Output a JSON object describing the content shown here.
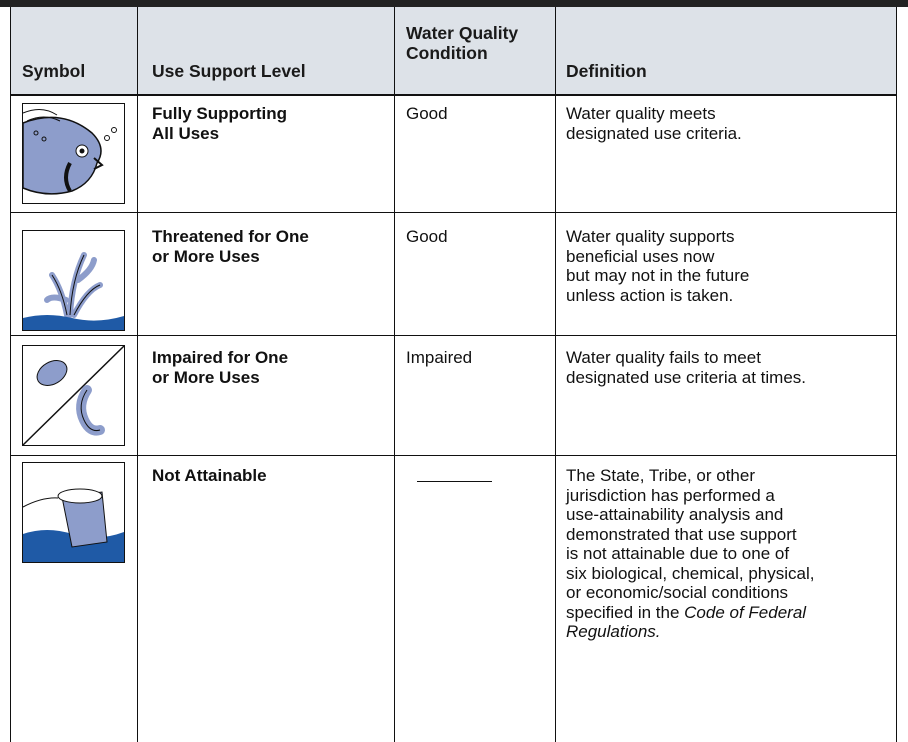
{
  "header": {
    "symbol": "Symbol",
    "level": "Use Support Level",
    "condition": [
      "Water Quality",
      "Condition"
    ],
    "definition": "Definition"
  },
  "table": {
    "rows": [
      {
        "level": [
          "Fully Supporting",
          "All Uses"
        ],
        "condition": "Good",
        "definition": [
          "Water quality meets",
          "designated use criteria."
        ]
      },
      {
        "level": [
          "Threatened for One",
          "or More Uses"
        ],
        "condition": "Good",
        "definition": [
          "Water quality supports",
          "beneficial uses now",
          "but may not in the future",
          "unless action is taken."
        ]
      },
      {
        "level": [
          "Impaired for One",
          "or More Uses"
        ],
        "condition": "Impaired",
        "definition": [
          "Water quality fails to meet",
          "designated use criteria at times."
        ]
      },
      {
        "level": [
          "Not Attainable"
        ],
        "definition": [
          "The State, Tribe, or other",
          "jurisdiction has performed a",
          "use-attainability analysis and",
          "demonstrated that use support",
          "is not attainable due to one of",
          "six biological, chemical, physical,",
          "or economic/social conditions",
          "specified in the"
        ],
        "definition_italic": [
          "Code of Federal",
          "Regulations."
        ]
      }
    ]
  }
}
